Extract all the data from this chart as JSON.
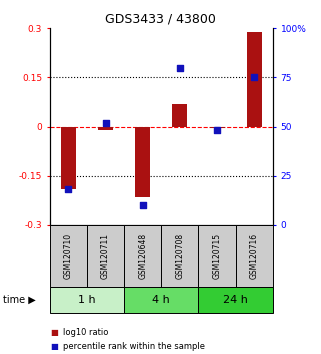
{
  "title": "GDS3433 / 43800",
  "samples": [
    "GSM120710",
    "GSM120711",
    "GSM120648",
    "GSM120708",
    "GSM120715",
    "GSM120716"
  ],
  "log10_ratio": [
    -0.19,
    -0.01,
    -0.215,
    0.07,
    -0.005,
    0.29
  ],
  "percentile_rank": [
    18,
    52,
    10,
    80,
    48,
    75
  ],
  "ylim_left": [
    -0.3,
    0.3
  ],
  "ylim_right": [
    0,
    100
  ],
  "yticks_left": [
    -0.3,
    -0.15,
    0,
    0.15,
    0.3
  ],
  "yticks_right": [
    0,
    25,
    50,
    75,
    100
  ],
  "ytick_labels_left": [
    "-0.3",
    "-0.15",
    "0",
    "0.15",
    "0.3"
  ],
  "ytick_labels_right": [
    "0",
    "25",
    "50",
    "75",
    "100%"
  ],
  "hlines_dotted": [
    -0.15,
    0.15
  ],
  "hline_red_dashed": 0,
  "bar_color": "#aa1111",
  "dot_color": "#1111bb",
  "groups": [
    {
      "label": "1 h",
      "spans": [
        0,
        2
      ],
      "color": "#c8f0c8"
    },
    {
      "label": "4 h",
      "spans": [
        2,
        4
      ],
      "color": "#66dd66"
    },
    {
      "label": "24 h",
      "spans": [
        4,
        6
      ],
      "color": "#33cc33"
    }
  ],
  "legend_bar_label": "log10 ratio",
  "legend_dot_label": "percentile rank within the sample",
  "background_color": "#ffffff",
  "sample_box_color": "#cccccc",
  "bar_width": 0.4,
  "dot_size": 25
}
